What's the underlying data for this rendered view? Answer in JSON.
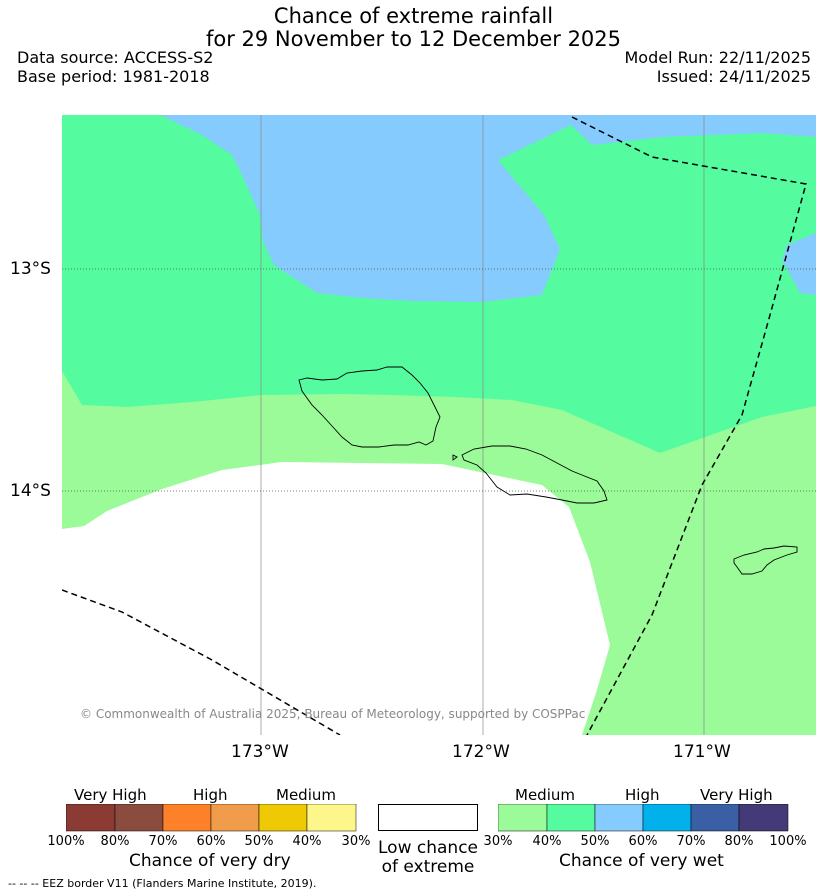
{
  "header": {
    "title_line1": "Chance of extreme rainfall",
    "title_line2": "for 29 November to 12 December 2025",
    "data_source": "Data source: ACCESS-S2",
    "base_period": "Base period: 1981-2018",
    "model_run": "Model Run: 22/11/2025",
    "issued": "Issued: 24/11/2025"
  },
  "map": {
    "lat_labels": [
      "13°S",
      "14°S"
    ],
    "lon_labels": [
      "173°W",
      "172°W",
      "171°W"
    ],
    "copyright": "© Commonwealth of Australia 2025, Bureau of Meteorology, supported by COSPPac",
    "colors": {
      "medium_wet": "#9afb98",
      "high_wet_40_50": "#54fc9f",
      "high_wet_50_60": "#85cbfd",
      "low": "#ffffff"
    }
  },
  "legend": {
    "dry": {
      "categories": [
        "Very High",
        "High",
        "Medium"
      ],
      "ticks": [
        "100%",
        "80%",
        "70%",
        "60%",
        "50%",
        "40%",
        "30%"
      ],
      "caption": "Chance of very dry",
      "colors": [
        "#8b3a34",
        "#8a4c3f",
        "#fd8129",
        "#f09c4a",
        "#f0c905",
        "#fdf68a"
      ]
    },
    "low": {
      "caption_line1": "Low chance",
      "caption_line2": "of extreme"
    },
    "wet": {
      "categories": [
        "Medium",
        "High",
        "Very High"
      ],
      "ticks": [
        "30%",
        "40%",
        "50%",
        "60%",
        "70%",
        "80%",
        "100%"
      ],
      "caption": "Chance of very wet",
      "colors": [
        "#9afb98",
        "#54fc9f",
        "#85cbfd",
        "#02b1ec",
        "#3a5fa4",
        "#433a77"
      ]
    }
  },
  "footer": {
    "eez_note": "--  --  -- EEZ border V11 (Flanders Marine Institute, 2019)."
  }
}
